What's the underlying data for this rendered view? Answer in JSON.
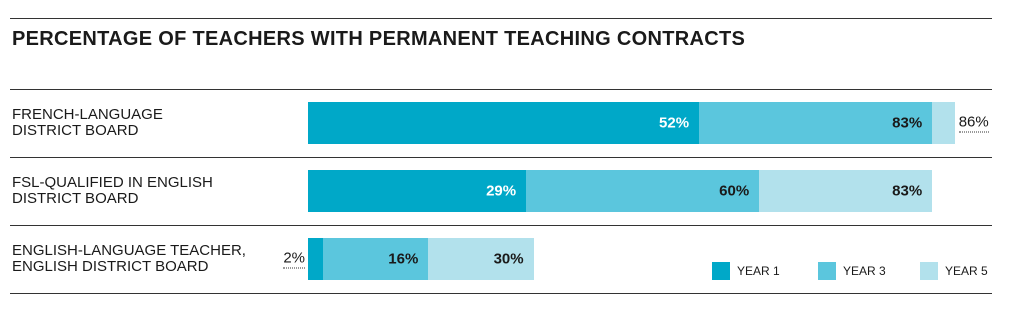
{
  "chart_data": {
    "type": "bar",
    "title": "PERCENTAGE OF TEACHERS WITH PERMANENT TEACHING CONTRACTS",
    "categories": [
      "FRENCH-LANGUAGE\nDISTRICT BOARD",
      "FSL-QUALIFIED IN ENGLISH\nDISTRICT BOARD",
      "ENGLISH-LANGUAGE TEACHER,\nENGLISH DISTRICT BOARD"
    ],
    "series": [
      {
        "name": "YEAR 1",
        "color": "#00a8c8",
        "values": [
          52,
          29,
          2
        ],
        "value_labels": [
          "52%",
          "29%",
          "2%"
        ]
      },
      {
        "name": "YEAR 3",
        "color": "#5bc6dd",
        "values": [
          83,
          60,
          16
        ],
        "value_labels": [
          "83%",
          "60%",
          "16%"
        ]
      },
      {
        "name": "YEAR 5",
        "color": "#b2e1ec",
        "values": [
          86,
          83,
          30
        ],
        "value_labels": [
          "86%",
          "83%",
          "30%"
        ]
      }
    ],
    "legend": "bottom-right"
  }
}
